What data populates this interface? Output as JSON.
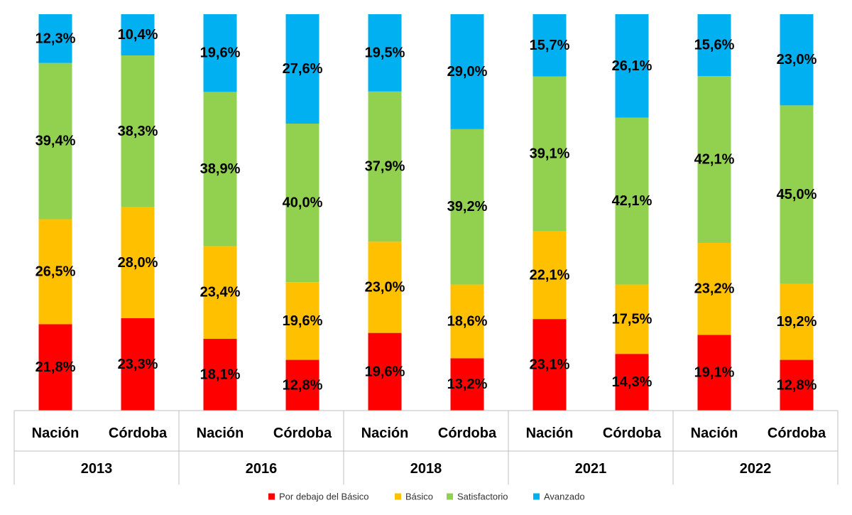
{
  "chart_data": {
    "type": "bar",
    "stacked": true,
    "percent_scale": true,
    "groups": [
      {
        "label": "2013",
        "categories": [
          "Nación",
          "Córdoba"
        ]
      },
      {
        "label": "2016",
        "categories": [
          "Nación",
          "Córdoba"
        ]
      },
      {
        "label": "2018",
        "categories": [
          "Nación",
          "Córdoba"
        ]
      },
      {
        "label": "2021",
        "categories": [
          "Nación",
          "Córdoba"
        ]
      },
      {
        "label": "2022",
        "categories": [
          "Nación",
          "Córdoba"
        ]
      }
    ],
    "series": [
      {
        "name": "Por debajo del Básico",
        "color": "#ff0000",
        "values": [
          21.8,
          23.3,
          18.1,
          12.8,
          19.6,
          13.2,
          23.1,
          14.3,
          19.1,
          12.8
        ],
        "labels": [
          "21,8%",
          "23,3%",
          "18,1%",
          "12,8%",
          "19,6%",
          "13,2%",
          "23,1%",
          "14,3%",
          "19,1%",
          "12,8%"
        ]
      },
      {
        "name": "Básico",
        "color": "#ffc000",
        "values": [
          26.5,
          28.0,
          23.4,
          19.6,
          23.0,
          18.6,
          22.1,
          17.5,
          23.2,
          19.2
        ],
        "labels": [
          "26,5%",
          "28,0%",
          "23,4%",
          "19,6%",
          "23,0%",
          "18,6%",
          "22,1%",
          "17,5%",
          "23,2%",
          "19,2%"
        ]
      },
      {
        "name": "Satisfactorio",
        "color": "#92d050",
        "values": [
          39.4,
          38.3,
          38.9,
          40.0,
          37.9,
          39.2,
          39.1,
          42.1,
          42.1,
          45.0
        ],
        "labels": [
          "39,4%",
          "38,3%",
          "38,9%",
          "40,0%",
          "37,9%",
          "39,2%",
          "39,1%",
          "42,1%",
          "42,1%",
          "45,0%"
        ]
      },
      {
        "name": "Avanzado",
        "color": "#00b0f0",
        "values": [
          12.3,
          10.4,
          19.6,
          27.6,
          19.5,
          29.0,
          15.7,
          26.1,
          15.6,
          23.0
        ],
        "labels": [
          "12,3%",
          "10,4%",
          "19,6%",
          "27,6%",
          "19,5%",
          "29,0%",
          "15,7%",
          "26,1%",
          "15,6%",
          "23,0%"
        ]
      }
    ],
    "ylim": [
      0,
      100
    ],
    "grid": false,
    "legend_position": "bottom"
  }
}
